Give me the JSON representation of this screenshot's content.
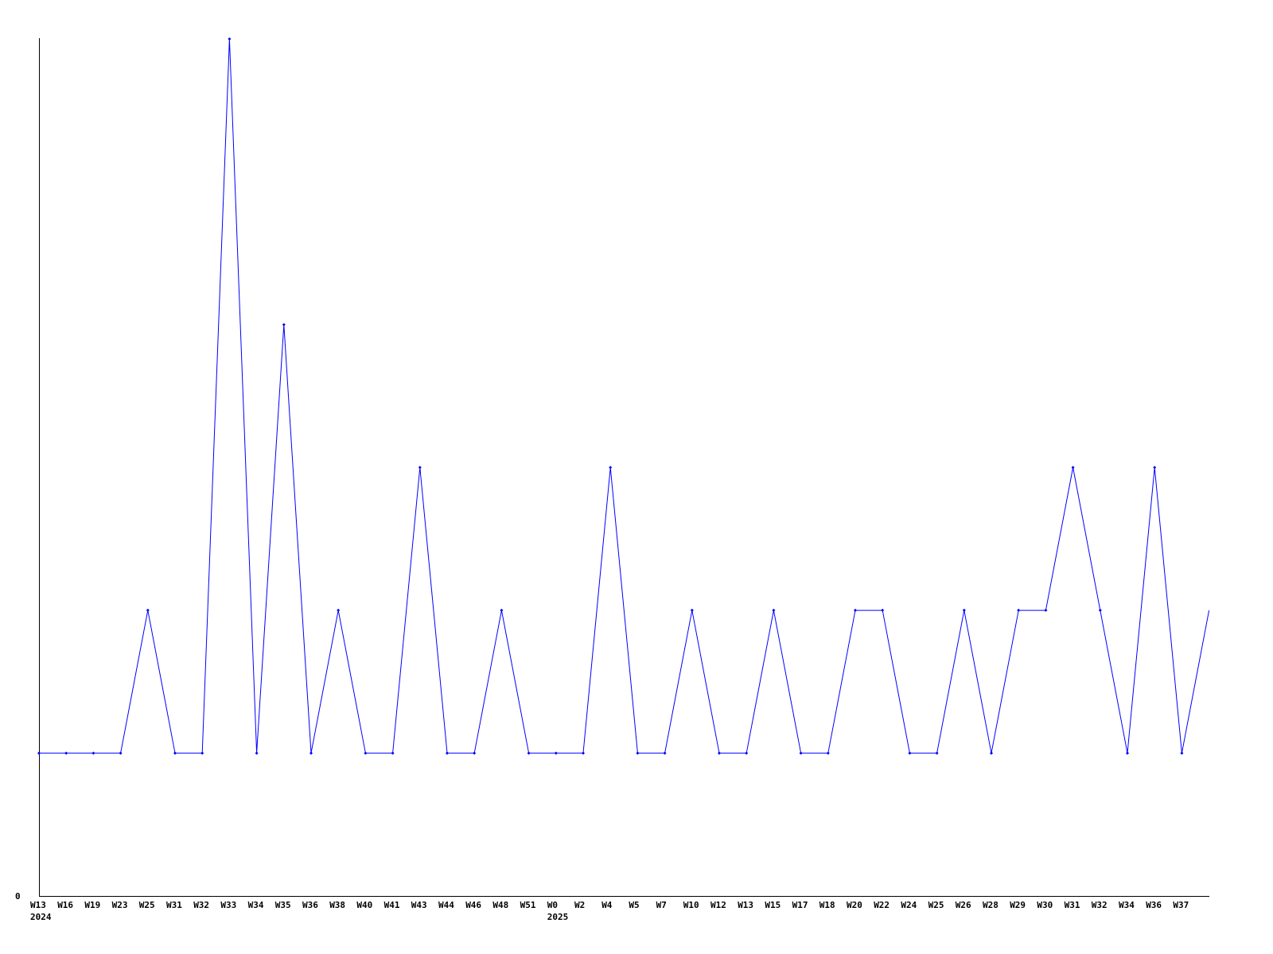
{
  "chart_data": {
    "type": "line",
    "title": "",
    "xlabel": "",
    "ylabel": "",
    "ylim": [
      0,
      6
    ],
    "y_ticks": [
      "0"
    ],
    "grid": false,
    "line_color": "#0000ff",
    "categories": [
      "W13",
      "W16",
      "W19",
      "W23",
      "W25",
      "W31",
      "W32",
      "W33",
      "W34",
      "W35",
      "W36",
      "W38",
      "W40",
      "W41",
      "W43",
      "W44",
      "W46",
      "W48",
      "W51",
      "W0",
      "W2",
      "W4",
      "W5",
      "W7",
      "W10",
      "W12",
      "W13",
      "W15",
      "W17",
      "W18",
      "W20",
      "W22",
      "W24",
      "W25",
      "W26",
      "W28",
      "W29",
      "W30",
      "W31",
      "W32",
      "W34",
      "W36",
      "W37",
      ""
    ],
    "year_labels": [
      {
        "index": 0,
        "label": "2024"
      },
      {
        "index": 19,
        "label": "2025"
      }
    ],
    "values": [
      1,
      1,
      1,
      1,
      2,
      1,
      1,
      6,
      1,
      4,
      1,
      2,
      1,
      1,
      3,
      1,
      1,
      2,
      1,
      1,
      1,
      3,
      1,
      1,
      2,
      1,
      1,
      2,
      1,
      1,
      2,
      2,
      1,
      1,
      2,
      1,
      2,
      2,
      3,
      2,
      1,
      3,
      1,
      2
    ]
  }
}
